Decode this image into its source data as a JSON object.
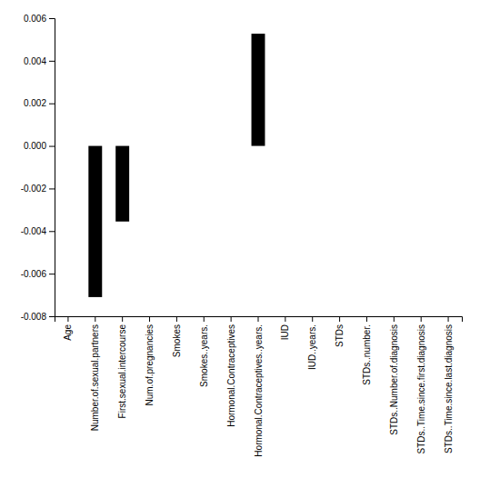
{
  "chart_data": {
    "type": "bar",
    "categories": [
      "Age",
      "Number.of.sexual.partners",
      "First.sexual.intercourse",
      "Num.of.pregnancies",
      "Smokes",
      "Smokes..years.",
      "Hormonal.Contraceptives",
      "Hormonal.Contraceptives..years.",
      "IUD",
      "IUD..years.",
      "STDs",
      "STDs..number.",
      "STDs..Number.of.diagnosis",
      "STDs..Time.since.first.diagnosis",
      "STDs..Time.since.last.diagnosis"
    ],
    "values": [
      0.0,
      -0.0071,
      -0.00355,
      0.0,
      0.0,
      0.0,
      0.0,
      0.00527,
      0.0,
      0.0,
      0.0,
      0.0,
      0.0,
      0.0,
      0.0
    ],
    "color": "#000000",
    "ylim": [
      -0.008,
      0.006
    ],
    "yticks": [
      -0.008,
      -0.006,
      -0.004,
      -0.002,
      {
        "value": 0,
        "label": "0.000"
      },
      0.002,
      0.004,
      0.006
    ],
    "grid": false
  }
}
